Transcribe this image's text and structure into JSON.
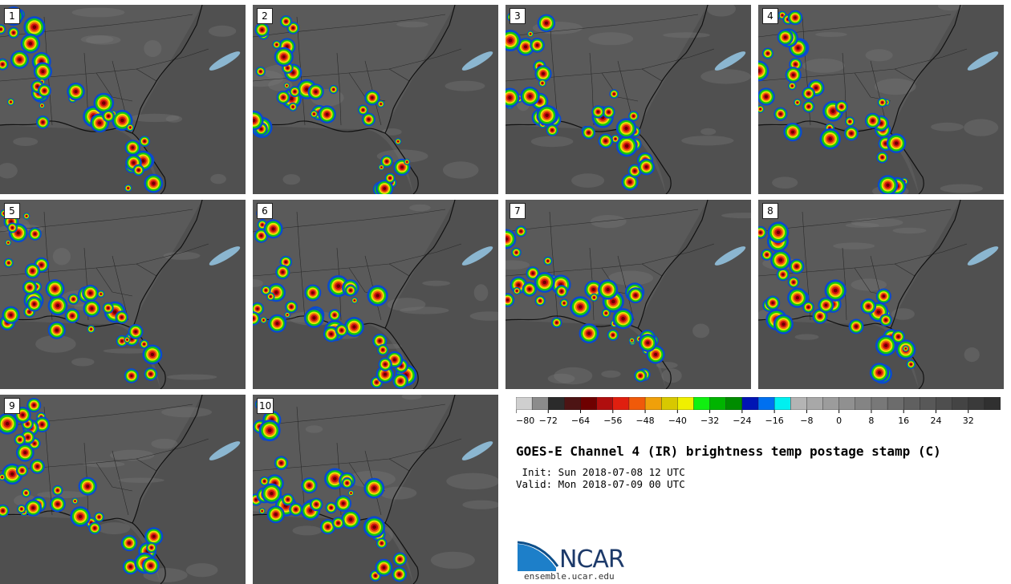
{
  "title": "GOES-E Channel 4 (IR) brightness temp postage stamp (C)",
  "init": " Init: Sun 2018-07-08 12 UTC",
  "valid": "Valid: Mon 2018-07-09 00 UTC",
  "logo": {
    "name": "NCAR",
    "url": "ensemble.ucar.edu"
  },
  "panels": [
    {
      "label": "1"
    },
    {
      "label": "2"
    },
    {
      "label": "3"
    },
    {
      "label": "4"
    },
    {
      "label": "5"
    },
    {
      "label": "6"
    },
    {
      "label": "7"
    },
    {
      "label": "8"
    },
    {
      "label": "9"
    },
    {
      "label": "10"
    }
  ],
  "colorbar": {
    "tick_labels": [
      "−80",
      "−72",
      "−64",
      "−56",
      "−48",
      "−40",
      "−32",
      "−24",
      "−16",
      "−8",
      "0",
      "8",
      "16",
      "24",
      "32"
    ],
    "min": -80,
    "max": 40,
    "step": 4,
    "colors": [
      "#cfcfcf",
      "#8c8c8c",
      "#2b2b2b",
      "#4d1414",
      "#6e0000",
      "#b00e0e",
      "#e01f0f",
      "#f05a0a",
      "#f0a00a",
      "#d8c800",
      "#f0f000",
      "#10f010",
      "#00b400",
      "#008c00",
      "#0014b4",
      "#0070f0",
      "#00f0f0",
      "#b4b4b4",
      "#a8a8a8",
      "#9c9c9c",
      "#909090",
      "#848484",
      "#787878",
      "#6c6c6c",
      "#606060",
      "#585858",
      "#4e4e4e",
      "#444444",
      "#3a3a3a",
      "#303030"
    ]
  }
}
